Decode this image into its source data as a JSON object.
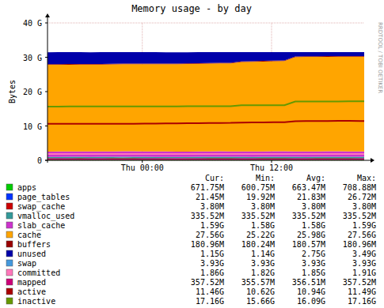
{
  "chart_data": {
    "type": "area",
    "title": "Memory usage - by day",
    "y_label": "Bytes",
    "watermark": "RRDTOOL / TOBI OETIKER",
    "stacked": true,
    "grid": true,
    "x": [
      -8.8,
      -7.8,
      -6.8,
      -5.8,
      -4.8,
      -3.8,
      -2.8,
      -1.8,
      -0.8,
      0.2,
      1.2,
      2.2,
      3.2,
      4.2,
      5.2,
      6.2,
      7.2,
      8.2,
      9.2,
      10.2,
      11.2,
      12.2,
      13.2,
      14.2,
      15.2,
      16.2,
      17.2,
      18.2,
      19.2,
      20.2,
      20.6
    ],
    "xlim": [
      -8.8,
      20.6
    ],
    "xticks": [
      {
        "value": 0,
        "label": "Thu 00:00"
      },
      {
        "value": 12,
        "label": "Thu 12:00"
      }
    ],
    "ylim": [
      0,
      40
    ],
    "yticks": [
      0,
      {
        "value": 10,
        "label": "10 G"
      },
      {
        "value": 20,
        "label": "20 G"
      },
      {
        "value": 30,
        "label": "30 G"
      },
      {
        "value": 40,
        "label": "40 G"
      }
    ],
    "legend_columns": [
      "Cur:",
      "Min:",
      "Avg:",
      "Max:"
    ],
    "series": [
      {
        "name": "apps",
        "type": "area",
        "color": "#00cc00",
        "stats": [
          "671.75M",
          "600.75M",
          "663.47M",
          "708.88M"
        ],
        "values": [
          0.62,
          0.65,
          0.66,
          0.67,
          0.64,
          0.66,
          0.68,
          0.7,
          0.69,
          0.66,
          0.65,
          0.63,
          0.6,
          0.62,
          0.66,
          0.68,
          0.69,
          0.67,
          0.66,
          0.65,
          0.67,
          0.68,
          0.69,
          0.66,
          0.65,
          0.67,
          0.68,
          0.69,
          0.67,
          0.66,
          0.66
        ]
      },
      {
        "name": "page_tables",
        "type": "area",
        "color": "#0033ff",
        "stats": [
          "21.45M",
          "19.92M",
          "21.83M",
          "26.72M"
        ],
        "values": [
          0.021,
          0.021,
          0.022,
          0.021,
          0.021,
          0.021,
          0.022,
          0.021,
          0.021,
          0.021,
          0.021,
          0.022,
          0.021,
          0.021,
          0.021,
          0.021,
          0.022,
          0.021,
          0.021,
          0.021,
          0.021,
          0.022,
          0.021,
          0.021,
          0.021,
          0.021,
          0.022,
          0.021,
          0.021,
          0.021,
          0.021
        ]
      },
      {
        "name": "swap_cache",
        "type": "area",
        "color": "#cc0000",
        "stats": [
          "3.80M",
          "3.80M",
          "3.80M",
          "3.80M"
        ],
        "values": [
          0.0037,
          0.0037,
          0.0037,
          0.0037,
          0.0037,
          0.0037,
          0.0037,
          0.0037,
          0.0037,
          0.0037,
          0.0037,
          0.0037,
          0.0037,
          0.0037,
          0.0037,
          0.0037,
          0.0037,
          0.0037,
          0.0037,
          0.0037,
          0.0037,
          0.0037,
          0.0037,
          0.0037,
          0.0037,
          0.0037,
          0.0037,
          0.0037,
          0.0037,
          0.0037,
          0.0037
        ]
      },
      {
        "name": "vmalloc_used",
        "type": "area",
        "color": "#339999",
        "stats": [
          "335.52M",
          "335.52M",
          "335.52M",
          "335.52M"
        ],
        "values": [
          0.3277,
          0.3277,
          0.3277,
          0.3277,
          0.3277,
          0.3277,
          0.3277,
          0.3277,
          0.3277,
          0.3277,
          0.3277,
          0.3277,
          0.3277,
          0.3277,
          0.3277,
          0.3277,
          0.3277,
          0.3277,
          0.3277,
          0.3277,
          0.3277,
          0.3277,
          0.3277,
          0.3277,
          0.3277,
          0.3277,
          0.3277,
          0.3277,
          0.3277,
          0.3277,
          0.3277
        ]
      },
      {
        "name": "slab_cache",
        "type": "area",
        "color": "#cc33cc",
        "stats": [
          "1.59G",
          "1.58G",
          "1.58G",
          "1.59G"
        ],
        "values": [
          1.58,
          1.58,
          1.58,
          1.58,
          1.58,
          1.58,
          1.58,
          1.58,
          1.58,
          1.58,
          1.58,
          1.58,
          1.58,
          1.58,
          1.58,
          1.58,
          1.58,
          1.58,
          1.58,
          1.58,
          1.59,
          1.59,
          1.59,
          1.59,
          1.59,
          1.59,
          1.59,
          1.59,
          1.59,
          1.59,
          1.59
        ]
      },
      {
        "name": "cache",
        "type": "area",
        "color": "#ffa500",
        "stats": [
          "27.56G",
          "25.22G",
          "25.98G",
          "27.56G"
        ],
        "values": [
          25.25,
          25.22,
          25.25,
          25.28,
          25.3,
          25.3,
          25.32,
          25.35,
          25.38,
          25.4,
          25.42,
          25.45,
          25.48,
          25.5,
          25.52,
          25.55,
          25.58,
          25.6,
          26.05,
          26.1,
          26.15,
          26.2,
          26.25,
          27.45,
          27.5,
          27.5,
          27.52,
          27.55,
          27.56,
          27.56,
          27.56
        ]
      },
      {
        "name": "buffers",
        "type": "area",
        "color": "#990000",
        "stats": [
          "180.96M",
          "180.24M",
          "180.57M",
          "180.96M"
        ],
        "values": [
          0.176,
          0.176,
          0.176,
          0.176,
          0.176,
          0.176,
          0.176,
          0.176,
          0.176,
          0.176,
          0.176,
          0.176,
          0.176,
          0.176,
          0.176,
          0.176,
          0.176,
          0.176,
          0.176,
          0.176,
          0.176,
          0.176,
          0.176,
          0.176,
          0.176,
          0.176,
          0.176,
          0.176,
          0.176,
          0.176,
          0.176
        ]
      },
      {
        "name": "unused",
        "type": "area",
        "color": "#0000aa",
        "stats": [
          "1.15G",
          "1.14G",
          "2.75G",
          "3.49G"
        ],
        "values": [
          3.46,
          3.49,
          3.46,
          3.43,
          3.41,
          3.41,
          3.39,
          3.36,
          3.33,
          3.31,
          3.29,
          3.26,
          3.23,
          3.21,
          3.19,
          3.16,
          3.13,
          3.11,
          2.66,
          2.61,
          2.56,
          2.51,
          2.46,
          1.26,
          1.21,
          1.21,
          1.19,
          1.16,
          1.14,
          1.15,
          1.15
        ]
      },
      {
        "name": "swap",
        "type": "area",
        "color": "#4499dd",
        "stats": [
          "3.93G",
          "3.93G",
          "3.93G",
          "3.93G"
        ]
      },
      {
        "name": "committed",
        "type": "line",
        "color": "#ff77bb",
        "stats": [
          "1.86G",
          "1.82G",
          "1.85G",
          "1.91G"
        ],
        "values": [
          1.85,
          1.85,
          1.85,
          1.85,
          1.85,
          1.85,
          1.85,
          1.85,
          1.85,
          1.85,
          1.85,
          1.85,
          1.85,
          1.85,
          1.85,
          1.85,
          1.85,
          1.85,
          1.85,
          1.85,
          1.85,
          1.85,
          1.85,
          1.85,
          1.85,
          1.85,
          1.85,
          1.85,
          1.85,
          1.85,
          1.86
        ]
      },
      {
        "name": "mapped",
        "type": "line",
        "color": "#cc0077",
        "stats": [
          "357.52M",
          "355.57M",
          "356.51M",
          "357.52M"
        ],
        "values": [
          0.348,
          0.348,
          0.348,
          0.348,
          0.348,
          0.348,
          0.348,
          0.348,
          0.348,
          0.348,
          0.348,
          0.348,
          0.348,
          0.348,
          0.348,
          0.348,
          0.348,
          0.348,
          0.348,
          0.348,
          0.348,
          0.348,
          0.348,
          0.348,
          0.348,
          0.348,
          0.348,
          0.348,
          0.348,
          0.348,
          0.349
        ]
      },
      {
        "name": "active",
        "type": "line",
        "color": "#aa0000",
        "stats": [
          "11.46G",
          "10.62G",
          "10.94G",
          "11.49G"
        ],
        "values": [
          10.62,
          10.62,
          10.63,
          10.63,
          10.64,
          10.64,
          10.65,
          10.65,
          10.66,
          10.68,
          10.7,
          10.72,
          10.74,
          10.8,
          10.82,
          10.85,
          10.88,
          10.9,
          11.0,
          11.02,
          11.05,
          11.08,
          11.12,
          11.4,
          11.42,
          11.44,
          11.45,
          11.47,
          11.49,
          11.46,
          11.46
        ]
      },
      {
        "name": "inactive",
        "type": "line",
        "color": "#669900",
        "stats": [
          "17.16G",
          "15.66G",
          "16.09G",
          "17.16G"
        ],
        "values": [
          15.66,
          15.66,
          15.67,
          15.67,
          15.68,
          15.68,
          15.69,
          15.69,
          15.7,
          15.7,
          15.7,
          15.71,
          15.71,
          15.72,
          15.72,
          15.73,
          15.73,
          15.74,
          16.02,
          16.03,
          16.04,
          16.05,
          16.06,
          17.1,
          17.12,
          17.13,
          17.14,
          17.15,
          17.16,
          17.16,
          17.16
        ]
      }
    ]
  }
}
